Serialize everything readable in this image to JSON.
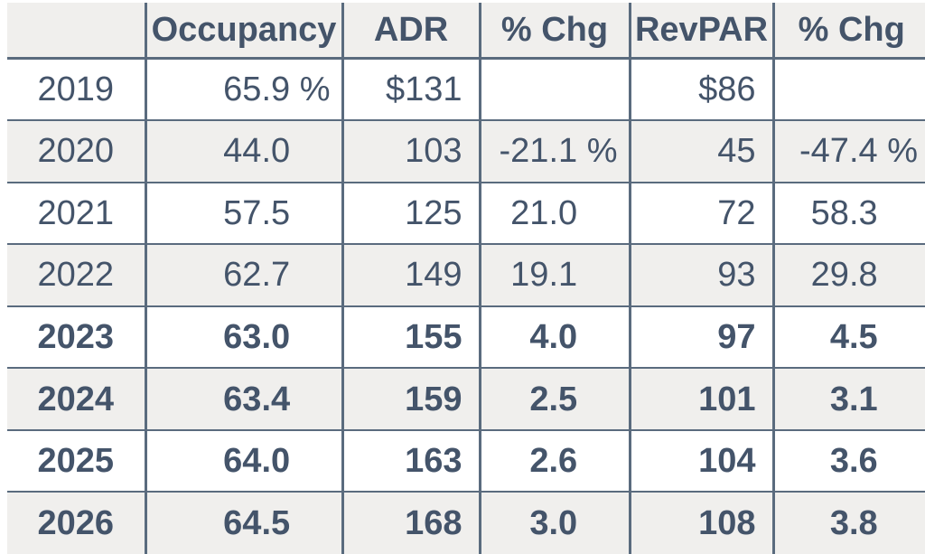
{
  "colors": {
    "text": "#44546a",
    "border": "#5a6b7e",
    "stripe": "#f0efed",
    "background": "#ffffff"
  },
  "table": {
    "columns": [
      {
        "key": "year",
        "label": ""
      },
      {
        "key": "occupancy",
        "label": "Occupancy"
      },
      {
        "key": "adr",
        "label": "ADR"
      },
      {
        "key": "adr_chg",
        "label": "% Chg"
      },
      {
        "key": "revpar",
        "label": "RevPAR"
      },
      {
        "key": "revpar_chg",
        "label": "% Chg"
      }
    ],
    "rows": [
      {
        "year": "2019",
        "forecast": false,
        "cells": [
          {
            "v": "65.9",
            "sfx": " %",
            "sfx_on": true,
            "money": false
          },
          {
            "v": "$131",
            "sfx": "",
            "sfx_on": false,
            "money": true
          },
          {
            "v": "",
            "sfx": " %",
            "sfx_on": false,
            "money": false
          },
          {
            "v": "$86",
            "sfx": "",
            "sfx_on": false,
            "money": true
          },
          {
            "v": "",
            "sfx": " %",
            "sfx_on": false,
            "money": false
          }
        ]
      },
      {
        "year": "2020",
        "forecast": false,
        "cells": [
          {
            "v": "44.0",
            "sfx": " %",
            "sfx_on": false,
            "money": false
          },
          {
            "v": "103",
            "sfx": "",
            "sfx_on": false,
            "money": true
          },
          {
            "v": "-21.1",
            "sfx": " %",
            "sfx_on": true,
            "money": false
          },
          {
            "v": "45",
            "sfx": "",
            "sfx_on": false,
            "money": true
          },
          {
            "v": "-47.4",
            "sfx": " %",
            "sfx_on": true,
            "money": false
          }
        ]
      },
      {
        "year": "2021",
        "forecast": false,
        "cells": [
          {
            "v": "57.5",
            "sfx": " %",
            "sfx_on": false,
            "money": false
          },
          {
            "v": "125",
            "sfx": "",
            "sfx_on": false,
            "money": true
          },
          {
            "v": "21.0",
            "sfx": " %",
            "sfx_on": false,
            "money": false
          },
          {
            "v": "72",
            "sfx": "",
            "sfx_on": false,
            "money": true
          },
          {
            "v": "58.3",
            "sfx": " %",
            "sfx_on": false,
            "money": false
          }
        ]
      },
      {
        "year": "2022",
        "forecast": false,
        "cells": [
          {
            "v": "62.7",
            "sfx": " %",
            "sfx_on": false,
            "money": false
          },
          {
            "v": "149",
            "sfx": "",
            "sfx_on": false,
            "money": true
          },
          {
            "v": "19.1",
            "sfx": " %",
            "sfx_on": false,
            "money": false
          },
          {
            "v": "93",
            "sfx": "",
            "sfx_on": false,
            "money": true
          },
          {
            "v": "29.8",
            "sfx": " %",
            "sfx_on": false,
            "money": false
          }
        ]
      },
      {
        "year": "2023",
        "forecast": true,
        "cells": [
          {
            "v": "63.0",
            "sfx": " %",
            "sfx_on": false,
            "money": false
          },
          {
            "v": "155",
            "sfx": "",
            "sfx_on": false,
            "money": true
          },
          {
            "v": "4.0",
            "sfx": " %",
            "sfx_on": false,
            "money": false
          },
          {
            "v": "97",
            "sfx": "",
            "sfx_on": false,
            "money": true
          },
          {
            "v": "4.5",
            "sfx": " %",
            "sfx_on": false,
            "money": false
          }
        ]
      },
      {
        "year": "2024",
        "forecast": true,
        "cells": [
          {
            "v": "63.4",
            "sfx": " %",
            "sfx_on": false,
            "money": false
          },
          {
            "v": "159",
            "sfx": "",
            "sfx_on": false,
            "money": true
          },
          {
            "v": "2.5",
            "sfx": " %",
            "sfx_on": false,
            "money": false
          },
          {
            "v": "101",
            "sfx": "",
            "sfx_on": false,
            "money": true
          },
          {
            "v": "3.1",
            "sfx": " %",
            "sfx_on": false,
            "money": false
          }
        ]
      },
      {
        "year": "2025",
        "forecast": true,
        "cells": [
          {
            "v": "64.0",
            "sfx": " %",
            "sfx_on": false,
            "money": false
          },
          {
            "v": "163",
            "sfx": "",
            "sfx_on": false,
            "money": true
          },
          {
            "v": "2.6",
            "sfx": " %",
            "sfx_on": false,
            "money": false
          },
          {
            "v": "104",
            "sfx": "",
            "sfx_on": false,
            "money": true
          },
          {
            "v": "3.6",
            "sfx": " %",
            "sfx_on": false,
            "money": false
          }
        ]
      },
      {
        "year": "2026",
        "forecast": true,
        "cells": [
          {
            "v": "64.5",
            "sfx": " %",
            "sfx_on": false,
            "money": false
          },
          {
            "v": "168",
            "sfx": "",
            "sfx_on": false,
            "money": true
          },
          {
            "v": "3.0",
            "sfx": " %",
            "sfx_on": false,
            "money": false
          },
          {
            "v": "108",
            "sfx": "",
            "sfx_on": false,
            "money": true
          },
          {
            "v": "3.8",
            "sfx": " %",
            "sfx_on": false,
            "money": false
          }
        ]
      }
    ]
  },
  "chart_data": {
    "type": "table",
    "title": "",
    "columns": [
      "",
      "Occupancy",
      "ADR",
      "% Chg",
      "RevPAR",
      "% Chg"
    ],
    "categories": [
      2019,
      2020,
      2021,
      2022,
      2023,
      2024,
      2025,
      2026
    ],
    "series": [
      {
        "name": "Occupancy (%)",
        "values": [
          65.9,
          44.0,
          57.5,
          62.7,
          63.0,
          63.4,
          64.0,
          64.5
        ]
      },
      {
        "name": "ADR ($)",
        "values": [
          131,
          103,
          125,
          149,
          155,
          159,
          163,
          168
        ]
      },
      {
        "name": "ADR % Chg",
        "values": [
          null,
          -21.1,
          21.0,
          19.1,
          4.0,
          2.5,
          2.6,
          3.0
        ]
      },
      {
        "name": "RevPAR ($)",
        "values": [
          86,
          45,
          72,
          93,
          97,
          101,
          104,
          108
        ]
      },
      {
        "name": "RevPAR % Chg",
        "values": [
          null,
          -47.4,
          58.3,
          29.8,
          4.5,
          3.1,
          3.6,
          3.8
        ]
      }
    ],
    "bold_rows": [
      2023,
      2024,
      2025,
      2026
    ],
    "layout": {
      "striped": true,
      "header_background": "#f0efed",
      "grid": "all-inner-borders"
    }
  }
}
